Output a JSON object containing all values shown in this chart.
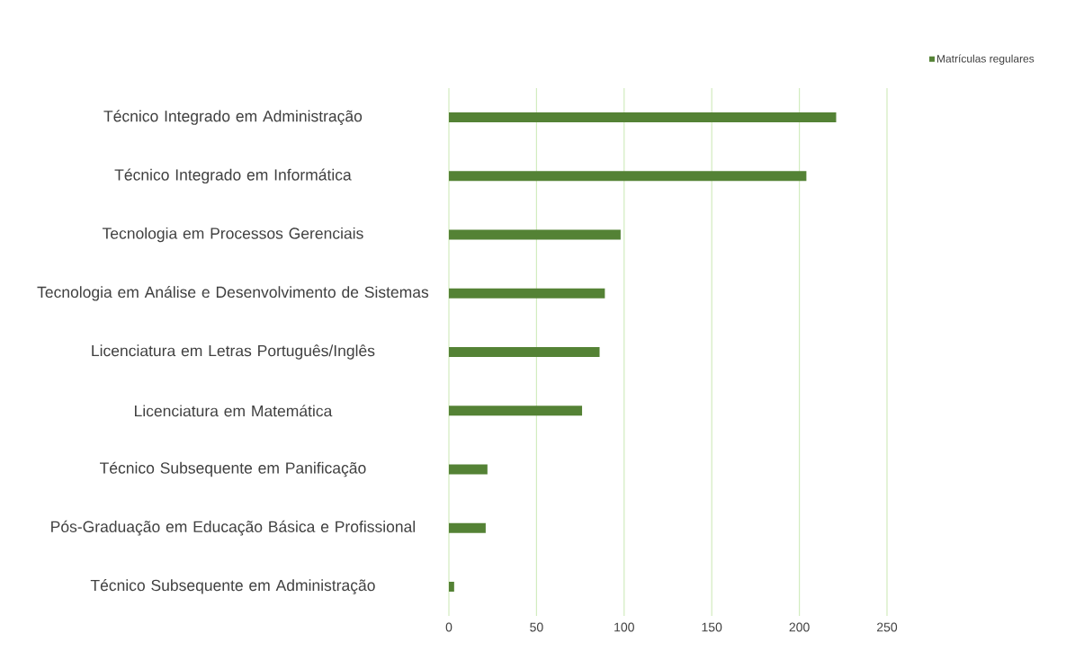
{
  "chart_data": {
    "type": "bar",
    "orientation": "horizontal",
    "categories": [
      "Técnico Integrado em Administração",
      "Técnico Integrado em Informática",
      "Tecnologia em Processos Gerenciais",
      "Tecnologia em Análise e Desenvolvimento de Sistemas",
      "Licenciatura em Letras Português/Inglês",
      "Licenciatura em Matemática",
      "Técnico Subsequente em Panificação",
      "Pós-Graduação em Educação Básica e Profissional",
      "Técnico Subsequente em Administração"
    ],
    "series": [
      {
        "name": "Matrículas regulares",
        "color": "#548235",
        "values": [
          221,
          204,
          98,
          89,
          86,
          76,
          22,
          21,
          3
        ]
      }
    ],
    "xlim": [
      0,
      250
    ],
    "xticks": [
      0,
      50,
      100,
      150,
      200,
      250
    ],
    "grid": "x",
    "legend": "top right"
  }
}
